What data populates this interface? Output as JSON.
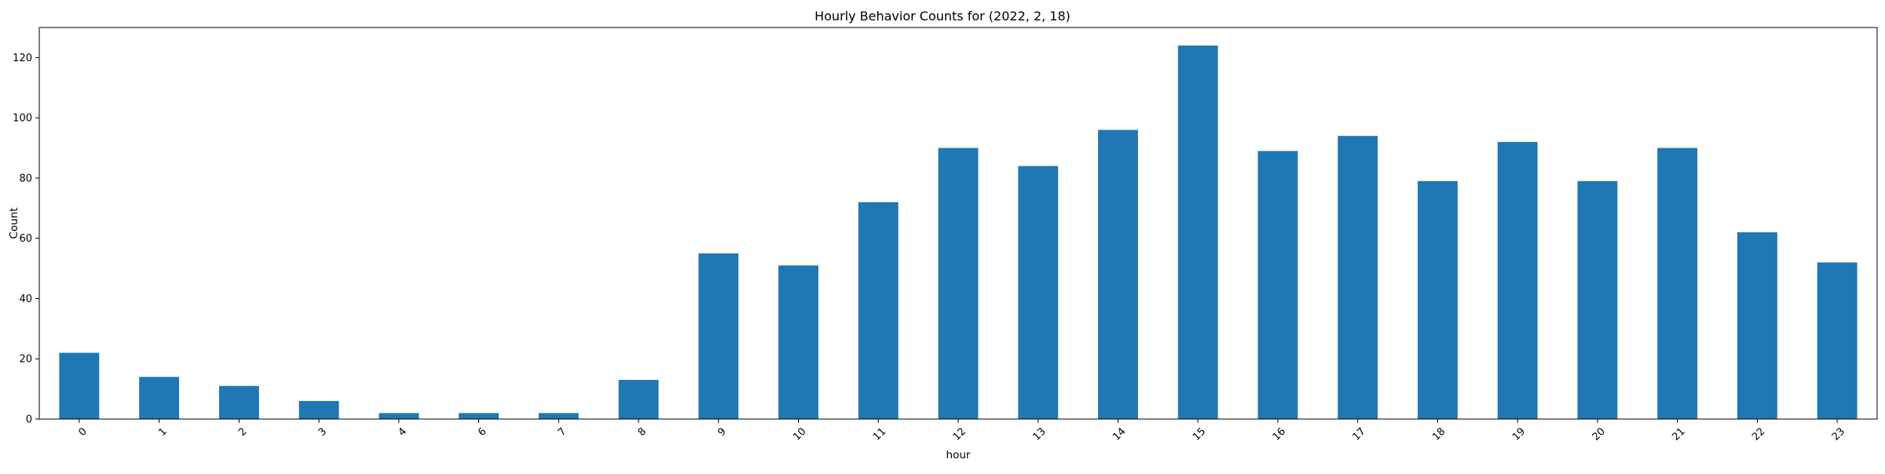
{
  "chart_data": {
    "type": "bar",
    "title": "Hourly Behavior Counts for (2022, 2, 18)",
    "xlabel": "hour",
    "ylabel": "Count",
    "categories": [
      "0",
      "1",
      "2",
      "3",
      "4",
      "6",
      "7",
      "8",
      "9",
      "10",
      "11",
      "12",
      "13",
      "14",
      "15",
      "16",
      "17",
      "18",
      "19",
      "20",
      "21",
      "22",
      "23"
    ],
    "values": [
      22,
      14,
      11,
      6,
      2,
      2,
      2,
      13,
      55,
      51,
      72,
      90,
      84,
      96,
      124,
      89,
      94,
      79,
      92,
      79,
      90,
      62,
      52
    ],
    "ylim": [
      0,
      130
    ],
    "yticks": [
      0,
      20,
      40,
      60,
      80,
      100,
      120
    ],
    "grid": false,
    "legend": "none",
    "colors": {
      "bar": "#1f77b4",
      "axes": "#000000",
      "background": "#ffffff"
    },
    "x_tick_rotation_deg": 45
  }
}
